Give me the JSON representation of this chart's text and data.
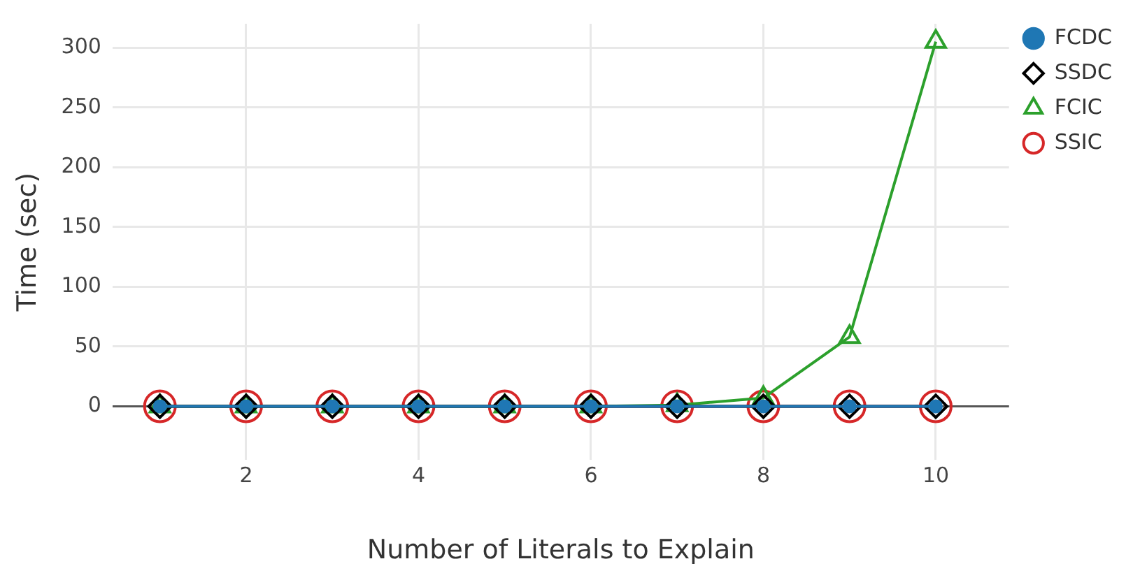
{
  "chart_data": {
    "type": "line",
    "xlabel": "Number of Literals to Explain",
    "ylabel": "Time (sec)",
    "x": [
      1,
      2,
      3,
      4,
      5,
      6,
      7,
      8,
      9,
      10
    ],
    "series": [
      {
        "name": "FCDC",
        "color": "#1f77b4",
        "marker": "circle",
        "values": [
          0,
          0,
          0,
          0,
          0,
          0,
          0,
          0,
          0,
          0
        ]
      },
      {
        "name": "SSDC",
        "color": "#000000",
        "marker": "diamond",
        "values": [
          0,
          0,
          0,
          0,
          0,
          0,
          0,
          0,
          0,
          0
        ]
      },
      {
        "name": "FCIC",
        "color": "#2ca02c",
        "marker": "triangle",
        "values": [
          0,
          0,
          0,
          0,
          0,
          0,
          1,
          7,
          58,
          305
        ]
      },
      {
        "name": "SSIC",
        "color": "#d62728",
        "marker": "circle",
        "values": [
          0,
          0,
          0,
          0,
          0,
          0,
          0,
          0,
          0,
          0
        ]
      }
    ],
    "xlim": [
      0.45,
      10.85
    ],
    "xticks": [
      2,
      4,
      6,
      8,
      10
    ],
    "ylim": [
      -45,
      320
    ],
    "yticks": [
      0,
      50,
      100,
      150,
      200,
      250,
      300
    ],
    "grid": true,
    "legend": "top right",
    "line_style": "solid"
  }
}
